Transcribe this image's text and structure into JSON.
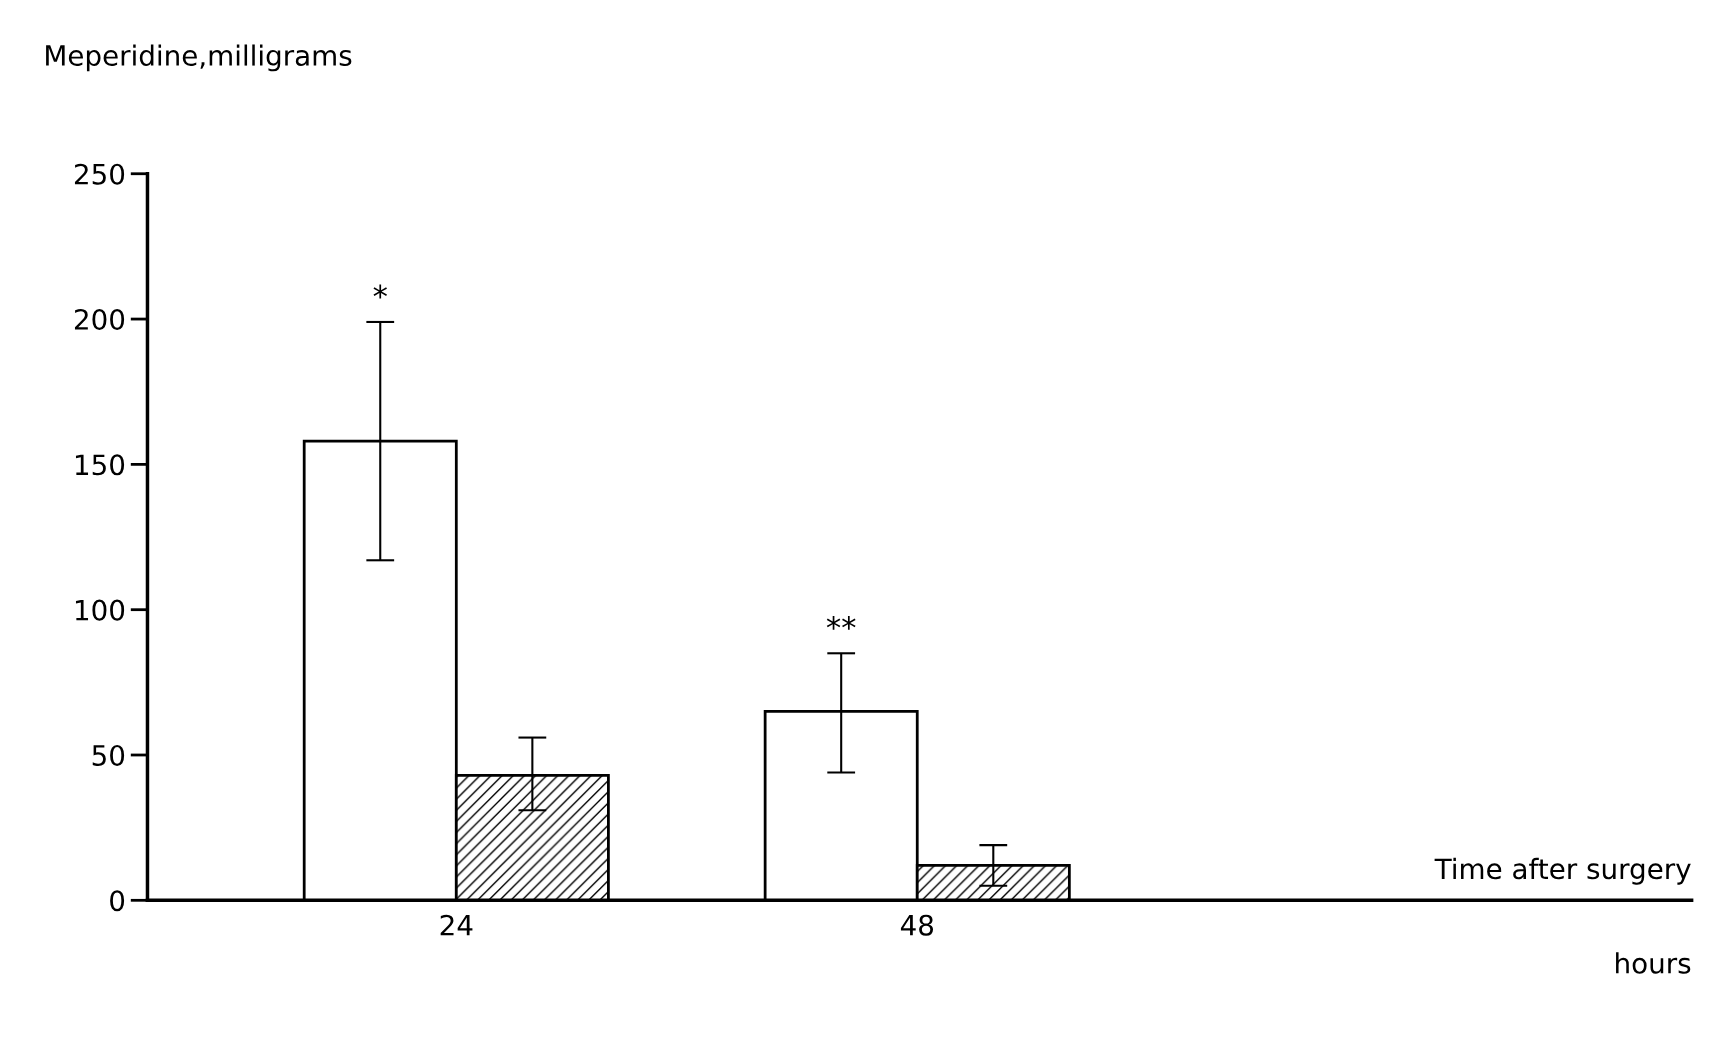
{
  "chart_data": {
    "type": "bar",
    "ylabel": "Meperidine,milligrams",
    "categories": [
      "24",
      "48"
    ],
    "series": [
      {
        "color": "#ffffff",
        "values": [
          158,
          65
        ],
        "errors": [
          [
            117,
            199
          ],
          [
            44,
            85
          ]
        ]
      },
      {
        "color": "#000000",
        "values": [
          43,
          12
        ],
        "errors": [
          [
            31,
            56
          ],
          [
            5,
            19
          ]
        ]
      }
    ],
    "ylim": [
      0,
      250
    ],
    "yticks": [
      0,
      50,
      100,
      150,
      200,
      250
    ],
    "grid": false,
    "legend": false,
    "annotations": [
      "*",
      "**",
      "Time after surgery",
      "hours"
    ]
  }
}
